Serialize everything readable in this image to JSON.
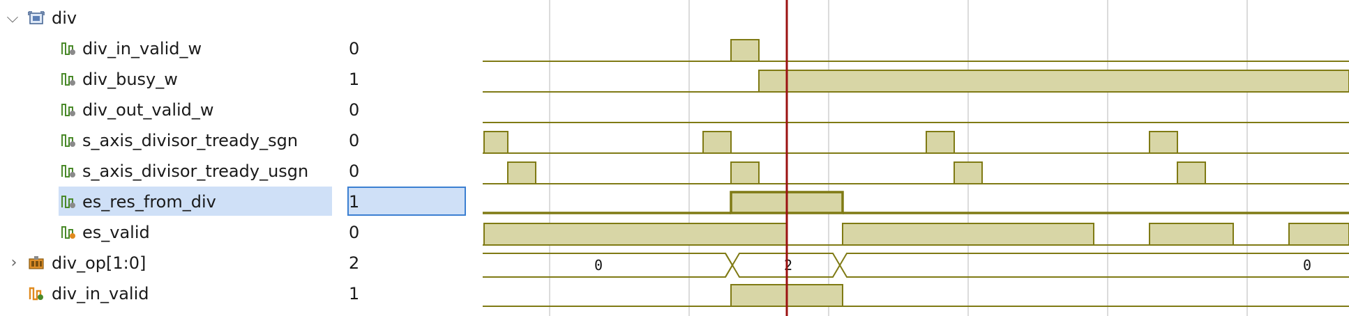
{
  "hierarchy": {
    "group_label": "div",
    "group_icon": "module-scope-icon",
    "rows": [
      {
        "name": "div_in_valid_w",
        "value": "0",
        "icon": "wire-signal-icon",
        "depth": 2
      },
      {
        "name": "div_busy_w",
        "value": "1",
        "icon": "wire-signal-icon",
        "depth": 2
      },
      {
        "name": "div_out_valid_w",
        "value": "0",
        "icon": "wire-signal-icon",
        "depth": 2
      },
      {
        "name": "s_axis_divisor_tready_sgn",
        "value": "0",
        "icon": "wire-signal-icon",
        "depth": 2
      },
      {
        "name": "s_axis_divisor_tready_usgn",
        "value": "0",
        "icon": "wire-signal-icon",
        "depth": 2
      },
      {
        "name": "es_res_from_div",
        "value": "1",
        "icon": "wire-signal-icon",
        "depth": 2,
        "selected": true
      },
      {
        "name": "es_valid",
        "value": "0",
        "icon": "reg-signal-icon",
        "depth": 2
      },
      {
        "name": "div_op[1:0]",
        "value": "2",
        "icon": "bus-signal-icon",
        "depth": 1,
        "expandable": true
      },
      {
        "name": "div_in_valid",
        "value": "1",
        "icon": "port-signal-icon",
        "depth": 1
      }
    ]
  },
  "bus_labels": {
    "div_op_a": "0",
    "div_op_b": "2",
    "div_op_c": "0"
  },
  "colors": {
    "waveform": "#7f7a14",
    "waveform_fill": "#d8d6a6",
    "cursor": "#9b1212",
    "selection": "#cfe0f7",
    "selection_border": "#3b7fd1",
    "grid": "#cfcfcf"
  }
}
